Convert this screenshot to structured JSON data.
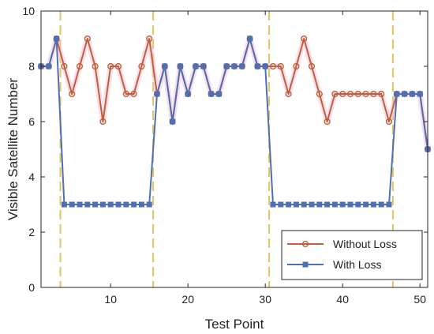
{
  "chart_data": {
    "type": "line",
    "xlabel": "Test Point",
    "ylabel": "Visible Satellite Number",
    "xlim": [
      1,
      51
    ],
    "ylim": [
      0,
      10
    ],
    "x_ticks": [
      10,
      20,
      30,
      40,
      50
    ],
    "y_ticks": [
      0,
      2,
      4,
      6,
      8,
      10
    ],
    "grid": false,
    "legend_position": "bottom-right",
    "vertical_markers": [
      3.5,
      15.5,
      30.5,
      46.5
    ],
    "vertical_marker_color": "#e2c35e",
    "x": [
      1,
      2,
      3,
      4,
      5,
      6,
      7,
      8,
      9,
      10,
      11,
      12,
      13,
      14,
      15,
      16,
      17,
      18,
      19,
      20,
      21,
      22,
      23,
      24,
      25,
      26,
      27,
      28,
      29,
      30,
      31,
      32,
      33,
      34,
      35,
      36,
      37,
      38,
      39,
      40,
      41,
      42,
      43,
      44,
      45,
      46,
      47,
      48,
      49,
      50,
      51
    ],
    "series": [
      {
        "name": "Without Loss",
        "color": "#c0603a",
        "marker": "circle",
        "values": [
          8,
          8,
          9,
          8,
          7,
          8,
          9,
          8,
          6,
          8,
          8,
          7,
          7,
          8,
          9,
          7,
          8,
          6,
          8,
          7,
          8,
          8,
          7,
          7,
          8,
          8,
          8,
          9,
          8,
          8,
          8,
          8,
          7,
          8,
          9,
          8,
          7,
          6,
          7,
          7,
          7,
          7,
          7,
          7,
          7,
          6,
          7,
          7,
          7,
          7,
          5
        ]
      },
      {
        "name": "With Loss",
        "color": "#4f6fb3",
        "marker": "square",
        "values": [
          8,
          8,
          9,
          3,
          3,
          3,
          3,
          3,
          3,
          3,
          3,
          3,
          3,
          3,
          3,
          7,
          8,
          6,
          8,
          7,
          8,
          8,
          7,
          7,
          8,
          8,
          8,
          9,
          8,
          8,
          3,
          3,
          3,
          3,
          3,
          3,
          3,
          3,
          3,
          3,
          3,
          3,
          3,
          3,
          3,
          3,
          7,
          7,
          7,
          7,
          5
        ]
      }
    ]
  }
}
